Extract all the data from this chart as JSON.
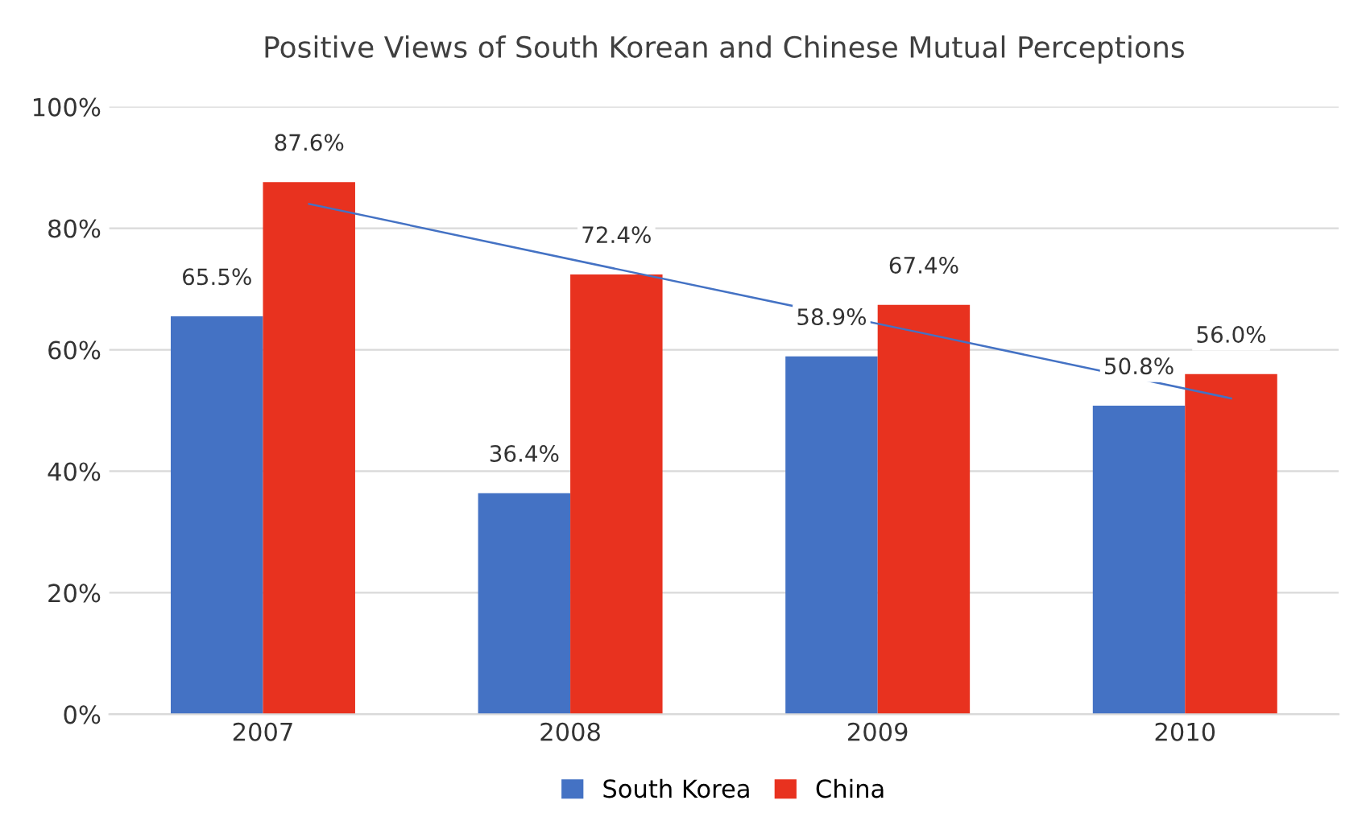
{
  "chart_data": {
    "type": "bar",
    "title": "Positive Views of South Korean and Chinese Mutual Perceptions",
    "categories": [
      "2007",
      "2008",
      "2009",
      "2010"
    ],
    "series": [
      {
        "name": "South Korea",
        "color": "#4472c4",
        "values": [
          65.5,
          36.4,
          58.9,
          50.8
        ],
        "value_labels": [
          "65.5%",
          "36.4%",
          "58.9%",
          "50.8%"
        ]
      },
      {
        "name": "China",
        "color": "#e8321f",
        "values": [
          87.6,
          72.4,
          67.4,
          56.0
        ],
        "value_labels": [
          "87.6%",
          "72.4%",
          "67.4%",
          "56.0%"
        ]
      },
      {
        "type": "line",
        "color": "#4472c4",
        "values": [
          84,
          73.3,
          62.7,
          52
        ]
      }
    ],
    "ylim": [
      0,
      100
    ],
    "yticks": [
      {
        "value": 0,
        "label": "0%"
      },
      {
        "value": 20,
        "label": "20%"
      },
      {
        "value": 40,
        "label": "40%"
      },
      {
        "value": 60,
        "label": "60%"
      },
      {
        "value": 80,
        "label": "80%"
      },
      {
        "value": 100,
        "label": "100%"
      }
    ],
    "grid": "y",
    "legend": "bottom"
  }
}
